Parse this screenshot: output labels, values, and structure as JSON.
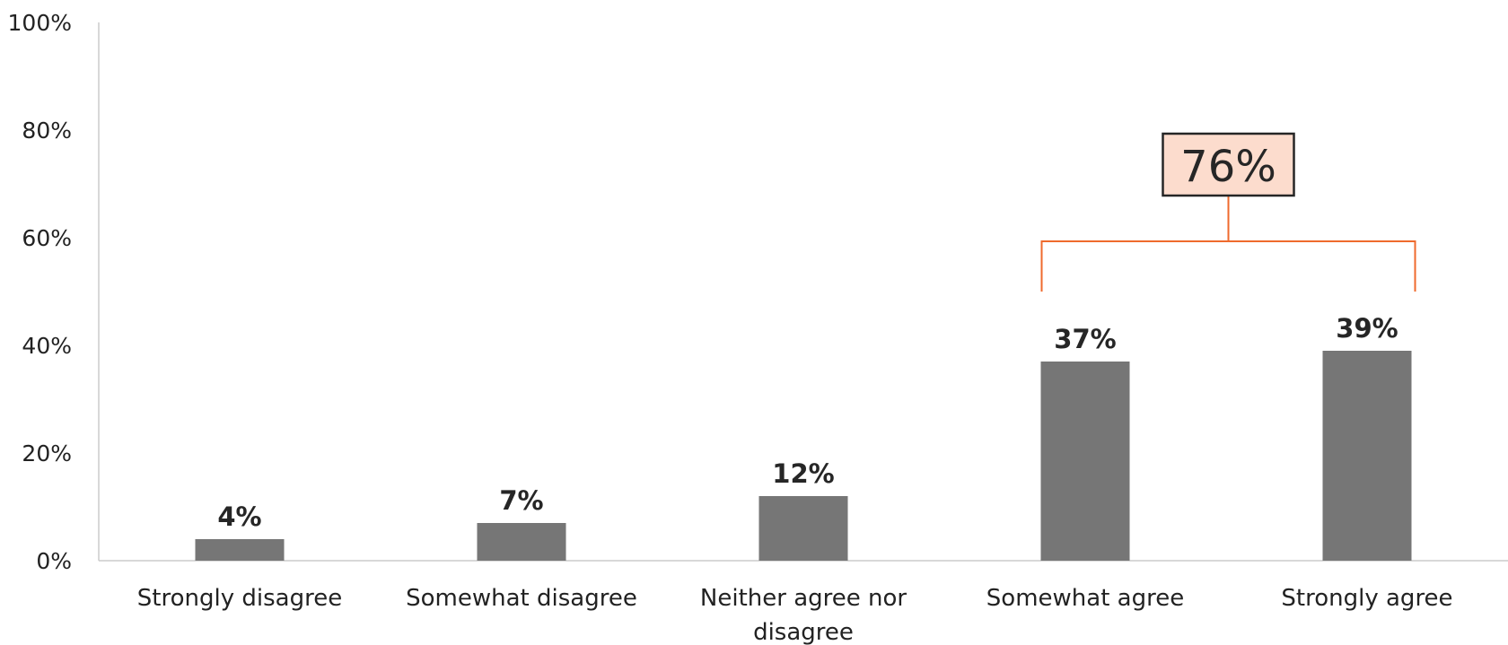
{
  "chart_data": {
    "type": "bar",
    "categories": [
      [
        "Strongly disagree"
      ],
      [
        "Somewhat disagree"
      ],
      [
        "Neither agree nor",
        "disagree"
      ],
      [
        "Somewhat agree"
      ],
      [
        "Strongly agree"
      ]
    ],
    "values": [
      4,
      7,
      12,
      37,
      39
    ],
    "data_labels": [
      "4%",
      "7%",
      "12%",
      "37%",
      "39%"
    ],
    "ylim": [
      0,
      100
    ],
    "yticks": [
      0,
      20,
      40,
      60,
      80,
      100
    ],
    "ytick_labels": [
      "0%",
      "20%",
      "40%",
      "60%",
      "80%",
      "100%"
    ],
    "title": "",
    "xlabel": "",
    "ylabel": "",
    "grid": false,
    "bar_color": "#767676",
    "axis_color": "#cccccc",
    "callout": {
      "label": "76%",
      "spans_categories": [
        3,
        4
      ],
      "box_fill": "#fcdccd",
      "box_border": "#262626",
      "bracket_color": "#ef6a2d"
    }
  }
}
